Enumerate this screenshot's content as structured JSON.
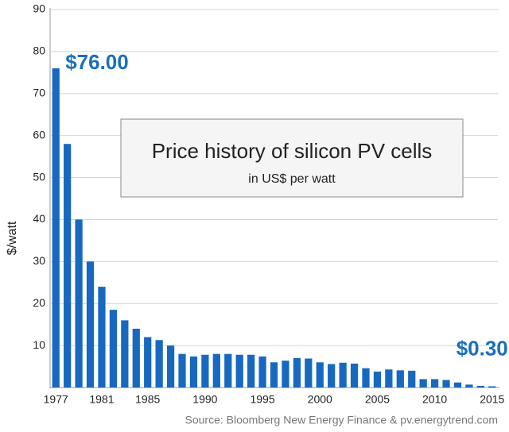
{
  "chart_data": {
    "type": "bar",
    "title": "Price history of silicon PV cells",
    "subtitle": "in US$ per watt",
    "ylabel": "$/watt",
    "source": "Source: Bloomberg New Energy Finance & pv.energytrend.com",
    "categories": [
      "1977",
      null,
      null,
      null,
      "1981",
      null,
      null,
      null,
      "1985",
      null,
      null,
      null,
      null,
      "1990",
      null,
      null,
      null,
      null,
      "1995",
      null,
      null,
      null,
      null,
      "2000",
      null,
      null,
      null,
      null,
      "2005",
      null,
      null,
      null,
      null,
      "2010",
      null,
      null,
      null,
      null,
      "2015"
    ],
    "values": [
      76,
      58,
      40,
      30,
      24,
      18.5,
      16,
      14,
      12,
      11.3,
      10,
      8,
      7.4,
      7.8,
      8,
      8,
      7.8,
      7.8,
      7.4,
      6,
      6.4,
      7,
      6.9,
      6,
      5.6,
      5.9,
      5.7,
      4.6,
      3.8,
      4.3,
      4.1,
      4,
      2,
      2,
      1.8,
      1.2,
      0.7,
      0.4,
      0.3
    ],
    "value_labels": [
      "$76.00",
      null,
      null,
      null,
      null,
      null,
      null,
      null,
      null,
      null,
      null,
      null,
      null,
      null,
      null,
      null,
      null,
      null,
      null,
      null,
      null,
      null,
      null,
      null,
      null,
      null,
      null,
      null,
      null,
      null,
      null,
      null,
      null,
      null,
      null,
      null,
      null,
      null,
      "$0.30"
    ],
    "color": "#1769c0",
    "label_color": "#1a6fbb",
    "ylim": [
      0,
      90
    ],
    "yticks": [
      10,
      20,
      30,
      40,
      50,
      60,
      70,
      80,
      90
    ],
    "grid": true
  }
}
